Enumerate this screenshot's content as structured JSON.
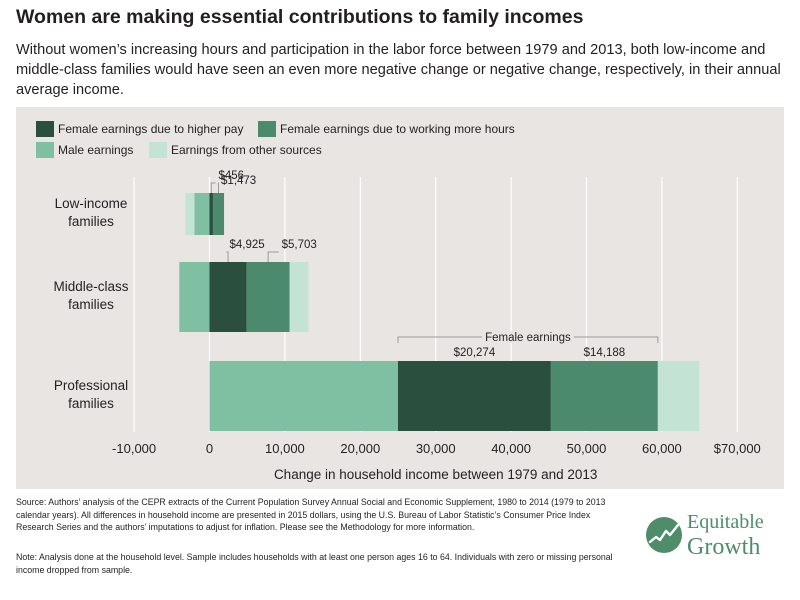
{
  "title": "Women are making essential contributions to family incomes",
  "subtitle": "Without women’s increasing hours and participation in the labor force between 1979 and 2013, both low-income and middle-class families would have seen an even more negative change or negative change, respectively, in their annual average income.",
  "colors": {
    "female_pay": "#2a4f3f",
    "female_hours": "#4c8a6e",
    "male": "#7fc0a3",
    "other": "#c3e3d5",
    "panel": "#e8e5e3",
    "bracket": "#9a9a9a",
    "brand": "#4e8c6a"
  },
  "chart_data": {
    "type": "bar",
    "orientation": "horizontal",
    "stacked": true,
    "categories": [
      [
        "Low-income",
        "families"
      ],
      [
        "Middle-class",
        "families"
      ],
      [
        "Professional",
        "families"
      ]
    ],
    "series": [
      {
        "name": "Female earnings due to higher pay",
        "color_key": "female_pay",
        "values": [
          456,
          4925,
          20274
        ]
      },
      {
        "name": "Female earnings due to working more hours",
        "color_key": "female_hours",
        "values": [
          1473,
          5703,
          14188
        ]
      },
      {
        "name": "Male earnings",
        "color_key": "male",
        "values": [
          -2000,
          -4000,
          25000
        ]
      },
      {
        "name": "Earnings from other sources",
        "color_key": "other",
        "values": [
          -1200,
          2500,
          5500
        ]
      }
    ],
    "stack_order": [
      [
        "female_pay",
        "female_hours",
        "male",
        "other"
      ],
      [
        "female_pay",
        "female_hours",
        "other",
        "male"
      ],
      [
        "male",
        "female_pay",
        "female_hours",
        "other"
      ]
    ],
    "data_labels": [
      {
        "text": "$456",
        "category": 0,
        "series": 0,
        "placement": "above"
      },
      {
        "text": "$1,473",
        "category": 0,
        "series": 1,
        "placement": "above"
      },
      {
        "text": "$4,925",
        "category": 1,
        "series": 0,
        "placement": "above"
      },
      {
        "text": "$5,703",
        "category": 1,
        "series": 1,
        "placement": "above"
      },
      {
        "text": "$20,274",
        "category": 2,
        "series": 0,
        "placement": "inside-top"
      },
      {
        "text": "$14,188",
        "category": 2,
        "series": 1,
        "placement": "inside-top"
      }
    ],
    "annotation": {
      "text": "Female earnings",
      "category": 2,
      "span_series": [
        0,
        1
      ]
    },
    "xlabel": "Change in household income between 1979 and 2013",
    "xlim": [
      -12000,
      72000
    ],
    "xticks": [
      -10000,
      0,
      10000,
      20000,
      30000,
      40000,
      50000,
      60000,
      70000
    ],
    "xtick_labels": [
      "-10,000",
      "0",
      "10,000",
      "20,000",
      "30,000",
      "40,000",
      "50,000",
      "60,000",
      "$70,000"
    ],
    "grid": true,
    "legend_position": "top-left"
  },
  "footer": {
    "source": "Source: Authors’ analysis of the CEPR extracts of the Current Population Survey Annual Social and Economic Supplement, 1980 to 2014 (1979 to 2013 calendar years). All differences in household income are presented in 2015 dollars, using the U.S. Bureau of Labor Statistic’s Consumer Price Index Research Series and the authors’ imputations to adjust for inflation. Please see the Methodology for more information.",
    "note": "Note: Analysis done at the household level. Sample includes households with at least one person ages 16 to 64. Individuals with zero or missing personal income dropped from sample."
  },
  "logo": {
    "line1": "Equitable",
    "line2": "Growth",
    "icon": "rising-line-chart-icon"
  }
}
